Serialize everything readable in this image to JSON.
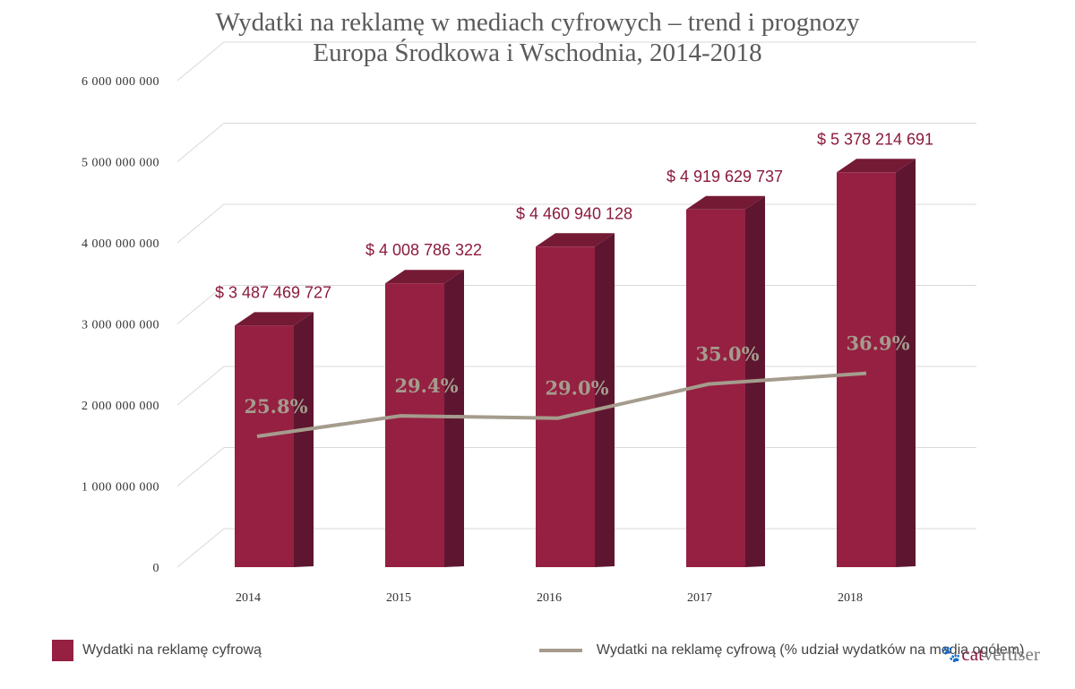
{
  "title_line1": "Wydatki na reklamę w mediach cyfrowych – trend i prognozy",
  "title_line2": "Europa Środkowa i Wschodnia, 2014-2018",
  "colors": {
    "bar_front": "#952042",
    "bar_side": "#5e1630",
    "bar_top": "#741a35",
    "line": "#a59c8d",
    "value_label": "#8b1a3c",
    "grid": "#d9d9d9",
    "logo_cat": "#8b1a3c",
    "logo_vertiser": "#7a7a7a"
  },
  "chart_data": {
    "type": "bar",
    "title": "Wydatki na reklamę w mediach cyfrowych – trend i prognozy / Europa Środkowa i Wschodnia, 2014-2018",
    "categories": [
      "2014",
      "2015",
      "2016",
      "2017",
      "2018"
    ],
    "ylim": [
      0,
      6000000000
    ],
    "y_ticks": [
      0,
      1000000000,
      2000000000,
      3000000000,
      4000000000,
      5000000000,
      6000000000
    ],
    "y_tick_labels": [
      "0",
      "1 000 000 000",
      "2 000 000 000",
      "3 000 000 000",
      "4 000 000 000",
      "5 000 000 000",
      "6 000 000 000"
    ],
    "series": [
      {
        "name": "Wydatki na reklamę cyfrową",
        "type": "bar",
        "values": [
          3487469727,
          4008786322,
          4460940128,
          4919629737,
          5378214691
        ],
        "labels": [
          "$ 3 487 469 727",
          "$ 4 008 786 322",
          "$ 4 460 940 128",
          "$ 4 919 629 737",
          "$ 5 378 214 691"
        ]
      },
      {
        "name": "Wydatki na reklamę cyfrową (% udział wydatków na media ogółem)",
        "type": "line",
        "values": [
          25.8,
          29.4,
          29.0,
          35.0,
          36.9
        ],
        "labels": [
          "25.8%",
          "29.4%",
          "29.0%",
          "35.0%",
          "36.9%"
        ]
      }
    ],
    "grid": true,
    "legend_position": "bottom"
  },
  "legend": {
    "bar_label": "Wydatki na reklamę cyfrową",
    "line_label": "Wydatki na reklamę cyfrową (% udział wydatków na media ogółem)"
  },
  "logo": {
    "cat": "cat",
    "vertiser": "vertiser",
    "paw_icon": "paw-icon"
  }
}
